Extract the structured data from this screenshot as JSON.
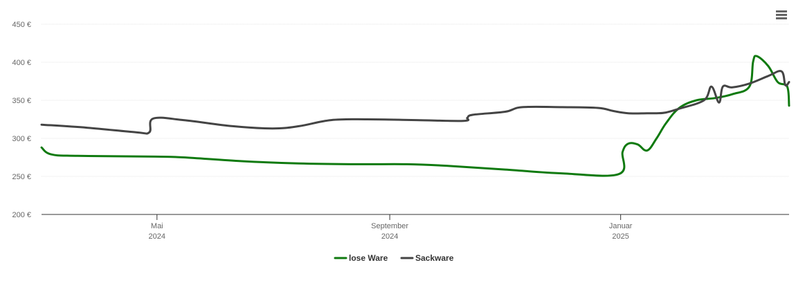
{
  "chart_data": {
    "type": "line",
    "title": "",
    "xlabel": "",
    "ylabel": "",
    "ylim": [
      200,
      450
    ],
    "xlim": [
      "2024-03-01",
      "2025-03-31"
    ],
    "y_ticks": [
      200,
      250,
      300,
      350,
      400,
      450
    ],
    "y_tick_labels": [
      "200 €",
      "250 €",
      "300 €",
      "350 €",
      "400 €",
      "450 €"
    ],
    "x_ticks": [
      {
        "date": "2024-05-01",
        "label1": "Mai",
        "label2": "2024"
      },
      {
        "date": "2024-09-01",
        "label1": "September",
        "label2": "2024"
      },
      {
        "date": "2025-01-01",
        "label1": "Januar",
        "label2": "2025"
      }
    ],
    "grid": "horizontal",
    "legend_position": "bottom-center",
    "series": [
      {
        "name": "lose Ware",
        "color": "#0f7a0f",
        "points": [
          [
            "2024-03-01",
            288
          ],
          [
            "2024-03-06",
            279
          ],
          [
            "2024-03-20",
            277
          ],
          [
            "2024-04-30",
            276
          ],
          [
            "2024-05-15",
            275
          ],
          [
            "2024-06-15",
            270
          ],
          [
            "2024-07-15",
            267
          ],
          [
            "2024-08-15",
            266
          ],
          [
            "2024-09-10",
            266
          ],
          [
            "2024-10-01",
            264
          ],
          [
            "2024-11-01",
            259
          ],
          [
            "2024-12-01",
            254
          ],
          [
            "2024-12-31",
            253
          ],
          [
            "2025-01-02",
            282
          ],
          [
            "2025-01-05",
            293
          ],
          [
            "2025-01-10",
            292
          ],
          [
            "2025-01-15",
            284
          ],
          [
            "2025-01-20",
            300
          ],
          [
            "2025-01-25",
            320
          ],
          [
            "2025-02-01",
            340
          ],
          [
            "2025-02-10",
            350
          ],
          [
            "2025-02-20",
            353
          ],
          [
            "2025-03-01",
            358
          ],
          [
            "2025-03-10",
            368
          ],
          [
            "2025-03-12",
            401
          ],
          [
            "2025-03-14",
            408
          ],
          [
            "2025-03-20",
            395
          ],
          [
            "2025-03-25",
            374
          ],
          [
            "2025-03-30",
            368
          ],
          [
            "2025-03-31",
            343
          ]
        ]
      },
      {
        "name": "Sackware",
        "color": "#444444",
        "points": [
          [
            "2024-03-01",
            318
          ],
          [
            "2024-03-25",
            314
          ],
          [
            "2024-04-20",
            308
          ],
          [
            "2024-04-27",
            308
          ],
          [
            "2024-04-29",
            326
          ],
          [
            "2024-05-15",
            324
          ],
          [
            "2024-06-10",
            316
          ],
          [
            "2024-07-01",
            313
          ],
          [
            "2024-07-15",
            316
          ],
          [
            "2024-08-01",
            324
          ],
          [
            "2024-08-20",
            325
          ],
          [
            "2024-09-15",
            324
          ],
          [
            "2024-10-10",
            323
          ],
          [
            "2024-10-12",
            327
          ],
          [
            "2024-10-15",
            331
          ],
          [
            "2024-11-01",
            335
          ],
          [
            "2024-11-10",
            341
          ],
          [
            "2024-12-01",
            341
          ],
          [
            "2024-12-20",
            340
          ],
          [
            "2024-12-28",
            336
          ],
          [
            "2025-01-05",
            333
          ],
          [
            "2025-01-15",
            333
          ],
          [
            "2025-01-20",
            333
          ],
          [
            "2025-01-25",
            334
          ],
          [
            "2025-02-01",
            339
          ],
          [
            "2025-02-14",
            350
          ],
          [
            "2025-02-18",
            368
          ],
          [
            "2025-02-22",
            347
          ],
          [
            "2025-02-24",
            368
          ],
          [
            "2025-03-01",
            367
          ],
          [
            "2025-03-10",
            372
          ],
          [
            "2025-03-20",
            382
          ],
          [
            "2025-03-27",
            388
          ],
          [
            "2025-03-29",
            370
          ],
          [
            "2025-03-31",
            374
          ]
        ]
      }
    ]
  },
  "ui": {
    "menu_icon": "hamburger-menu-icon"
  }
}
